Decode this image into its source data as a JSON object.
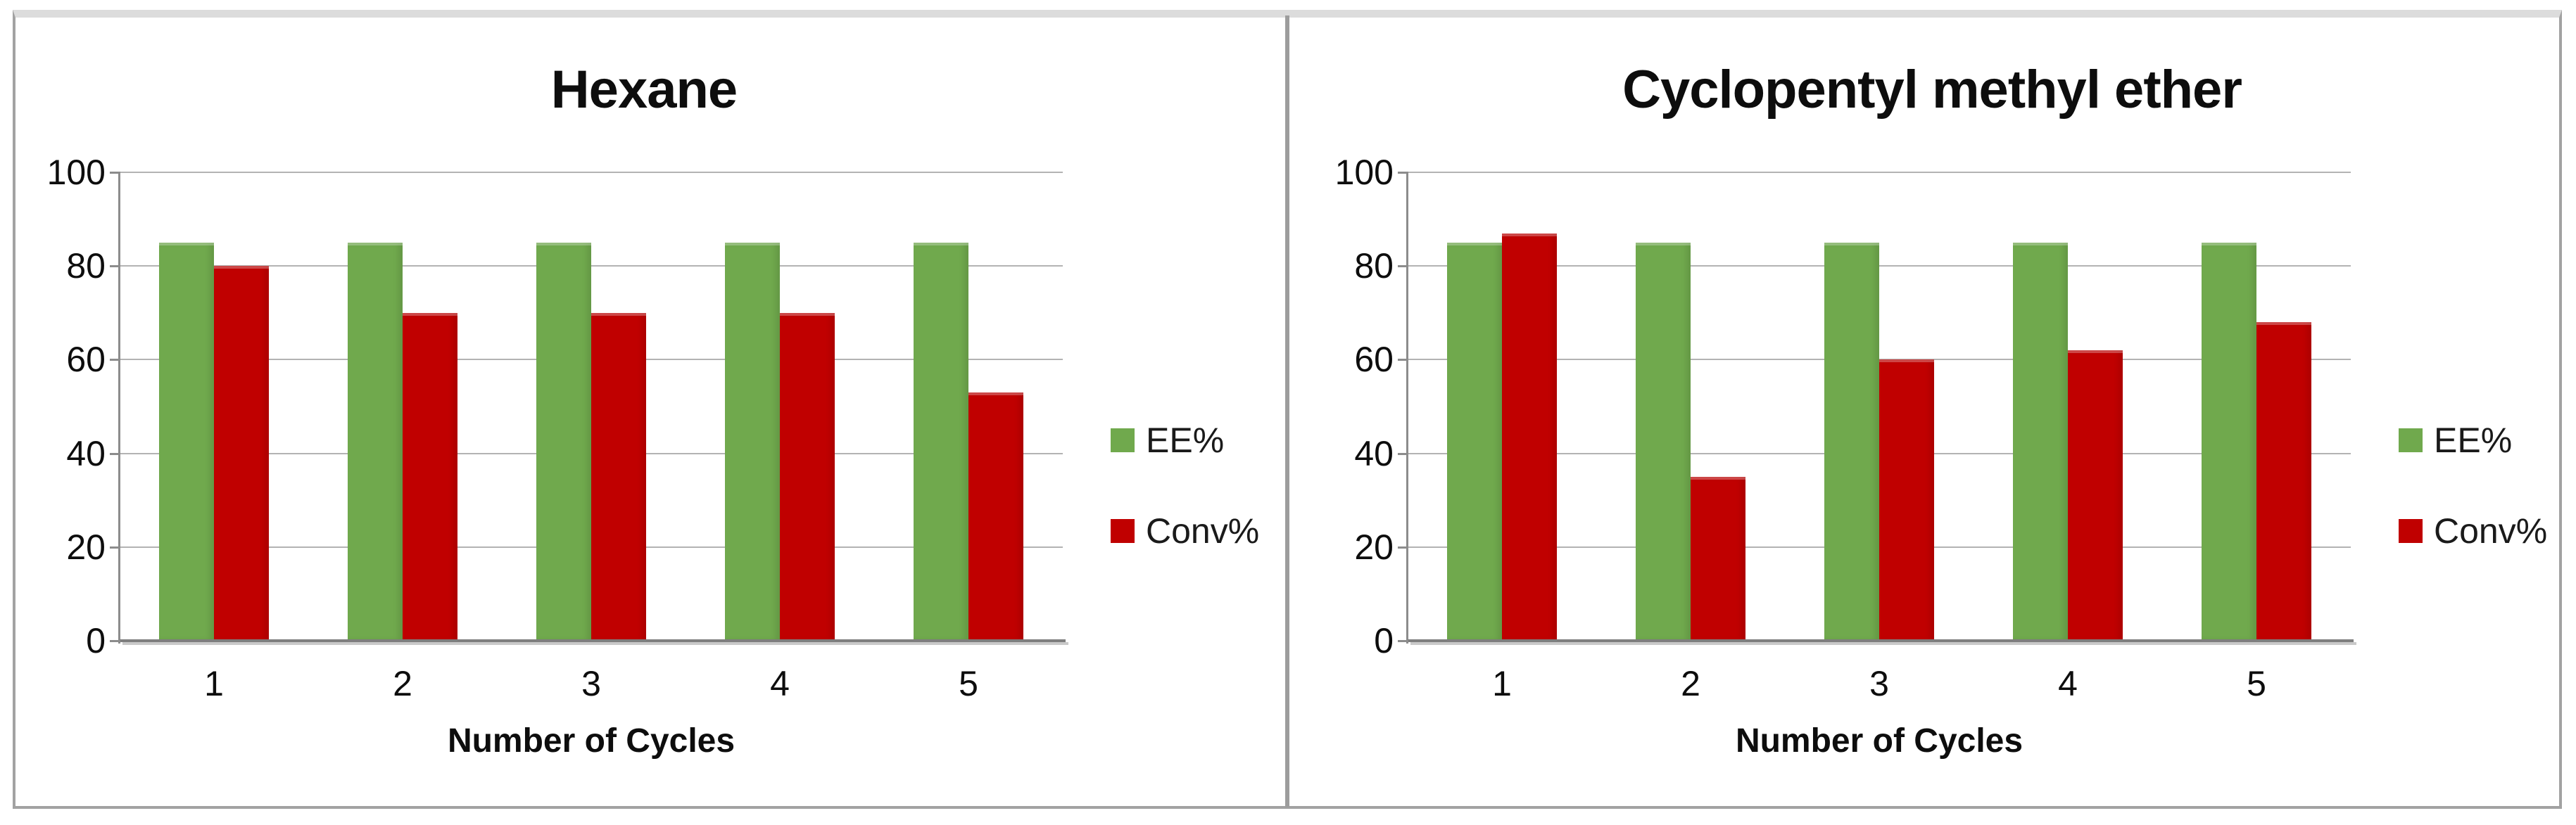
{
  "chart_data": [
    {
      "type": "bar",
      "title": "Hexane",
      "xlabel": "Number of Cycles",
      "categories": [
        "1",
        "2",
        "3",
        "4",
        "5"
      ],
      "series": [
        {
          "name": "EE%",
          "color": "#70A94D",
          "values": [
            85,
            85,
            85,
            85,
            85
          ]
        },
        {
          "name": "Conv%",
          "color": "#C00000",
          "values": [
            80,
            70,
            70,
            70,
            53
          ]
        }
      ],
      "ylim": [
        0,
        100
      ],
      "yticks": [
        0,
        20,
        40,
        60,
        80,
        100
      ],
      "grid": true,
      "legend_position": "right"
    },
    {
      "type": "bar",
      "title": "Cyclopentyl methyl ether",
      "xlabel": "Number of Cycles",
      "categories": [
        "1",
        "2",
        "3",
        "4",
        "5"
      ],
      "series": [
        {
          "name": "EE%",
          "color": "#70A94D",
          "values": [
            85,
            85,
            85,
            85,
            85
          ]
        },
        {
          "name": "Conv%",
          "color": "#C00000",
          "values": [
            87,
            35,
            60,
            62,
            68
          ]
        }
      ],
      "ylim": [
        0,
        100
      ],
      "yticks": [
        0,
        20,
        40,
        60,
        80,
        100
      ],
      "grid": true,
      "legend_position": "right"
    }
  ]
}
